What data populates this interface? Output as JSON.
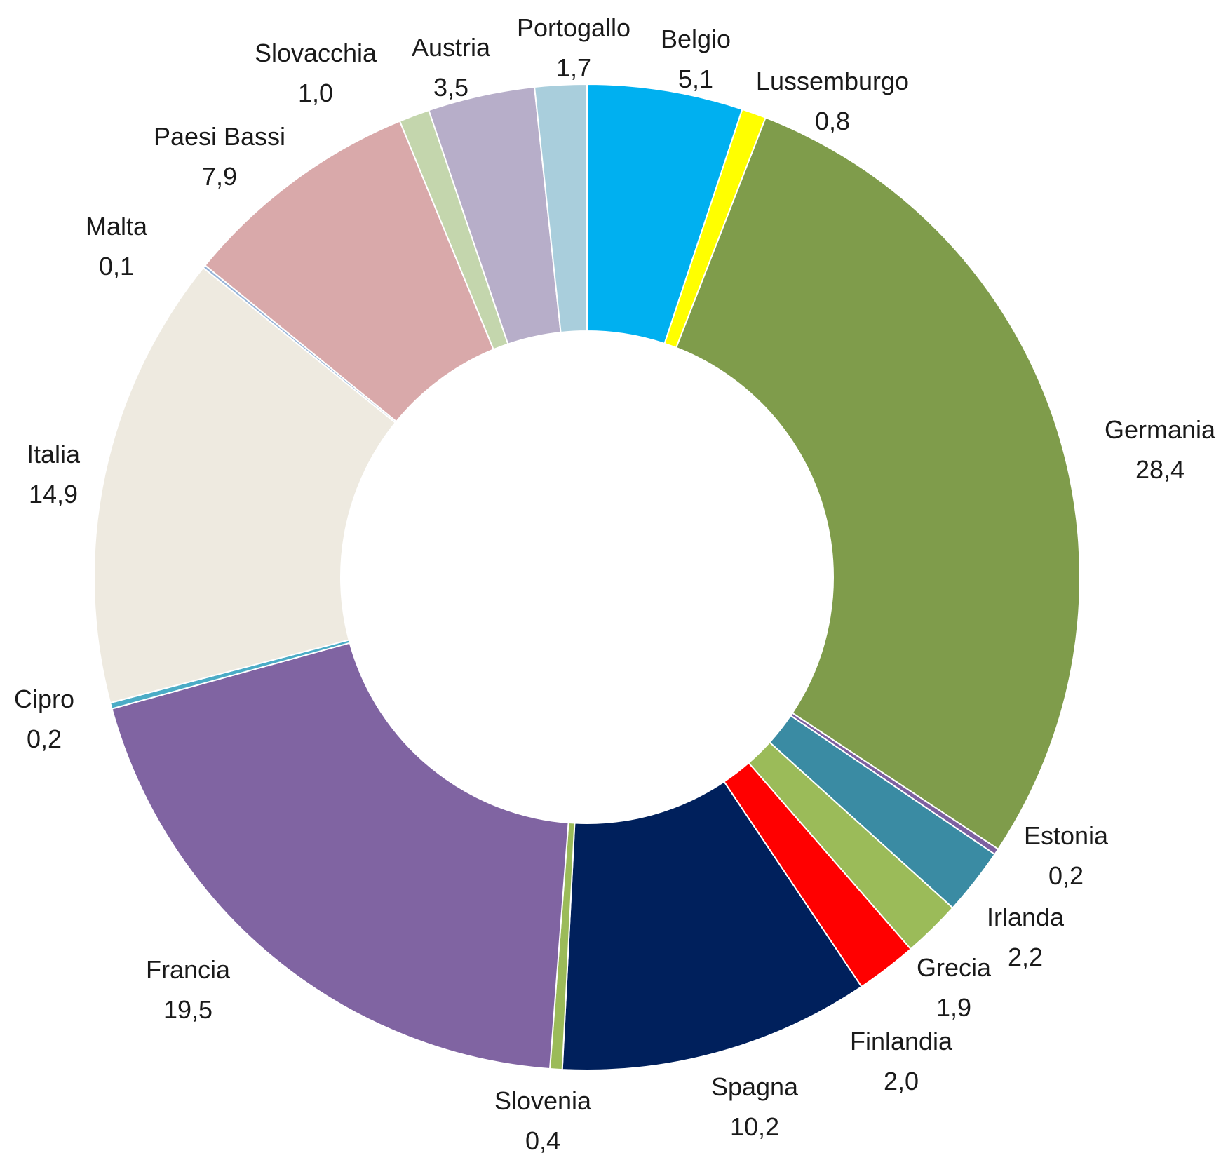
{
  "chart_data": {
    "type": "pie",
    "variant": "donut",
    "title": "",
    "start_angle_deg": 0,
    "direction": "clockwise",
    "slices": [
      {
        "label": "Belgio",
        "value": 5.1,
        "value_text": "5,1",
        "color": "#00B0F0"
      },
      {
        "label": "Lussemburgo",
        "value": 0.8,
        "value_text": "0,8",
        "color": "#FFFF00"
      },
      {
        "label": "Germania",
        "value": 28.4,
        "value_text": "28,4",
        "color": "#7F9C4B"
      },
      {
        "label": "Estonia",
        "value": 0.2,
        "value_text": "0,2",
        "color": "#7D60A0"
      },
      {
        "label": "Irlanda",
        "value": 2.2,
        "value_text": "2,2",
        "color": "#3A8BA3"
      },
      {
        "label": "Grecia",
        "value": 1.9,
        "value_text": "1,9",
        "color": "#9BBB59"
      },
      {
        "label": "Finlandia",
        "value": 2.0,
        "value_text": "2,0",
        "color": "#FF0000"
      },
      {
        "label": "Spagna",
        "value": 10.2,
        "value_text": "10,2",
        "color": "#00205C"
      },
      {
        "label": "Slovenia",
        "value": 0.4,
        "value_text": "0,4",
        "color": "#9BBB59"
      },
      {
        "label": "Francia",
        "value": 19.5,
        "value_text": "19,5",
        "color": "#8064A2"
      },
      {
        "label": "Cipro",
        "value": 0.2,
        "value_text": "0,2",
        "color": "#4BACC6"
      },
      {
        "label": "Italia",
        "value": 14.9,
        "value_text": "14,9",
        "color": "#EEEAE0"
      },
      {
        "label": "Malta",
        "value": 0.1,
        "value_text": "0,1",
        "color": "#95B3D7"
      },
      {
        "label": "Paesi Bassi",
        "value": 7.9,
        "value_text": "7,9",
        "color": "#D9A9AA"
      },
      {
        "label": "Slovacchia",
        "value": 1.0,
        "value_text": "1,0",
        "color": "#C4D6AD"
      },
      {
        "label": "Austria",
        "value": 3.5,
        "value_text": "3,5",
        "color": "#B7AEC9"
      },
      {
        "label": "Portogallo",
        "value": 1.7,
        "value_text": "1,7",
        "color": "#A9CEDC"
      }
    ]
  }
}
